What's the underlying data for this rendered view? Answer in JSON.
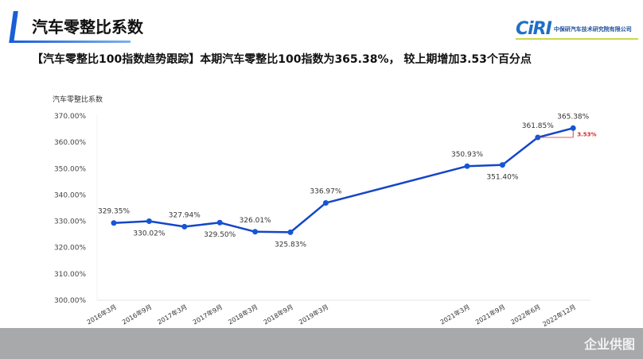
{
  "header": {
    "title": "汽车零整比系数",
    "logo_mark": "CiRI",
    "logo_text": "中保研汽车技术研究院有限公司"
  },
  "headline": "【汽车零整比100指数趋势跟踪】本期汽车零整比100指数为365.38%， 较上期增加3.53个百分点",
  "watermark": "企业供图",
  "colors": {
    "line": "#1446c8",
    "point": "#1556d6",
    "annotation": "#d62828",
    "accent": "#1a5fd6"
  },
  "chart_data": {
    "type": "line",
    "ylabel": "汽车零整比系数",
    "ylim": [
      300,
      370
    ],
    "yticks": [
      "300.00%",
      "310.00%",
      "320.00%",
      "330.00%",
      "340.00%",
      "350.00%",
      "360.00%",
      "370.00%"
    ],
    "categories": [
      "2016年3月",
      "2016年9月",
      "2017年3月",
      "2017年9月",
      "2018年3月",
      "2018年9月",
      "2019年3月",
      "2021年3月",
      "2021年9月",
      "2022年6月",
      "2022年12月"
    ],
    "values": [
      329.35,
      330.02,
      327.94,
      329.5,
      326.01,
      325.83,
      336.97,
      350.93,
      351.4,
      361.85,
      365.38
    ],
    "data_labels": [
      "329.35%",
      "330.02%",
      "327.94%",
      "329.50%",
      "326.01%",
      "325.83%",
      "336.97%",
      "350.93%",
      "351.40%",
      "361.85%",
      "365.38%"
    ],
    "label_position": [
      "above",
      "below",
      "above",
      "below",
      "above",
      "below",
      "above",
      "above",
      "below",
      "above",
      "above"
    ],
    "x_positions": [
      0,
      1,
      2,
      3,
      4,
      5,
      6,
      10,
      11,
      12,
      13
    ],
    "annotation": "3.53%",
    "grid": false,
    "legend": "none"
  }
}
